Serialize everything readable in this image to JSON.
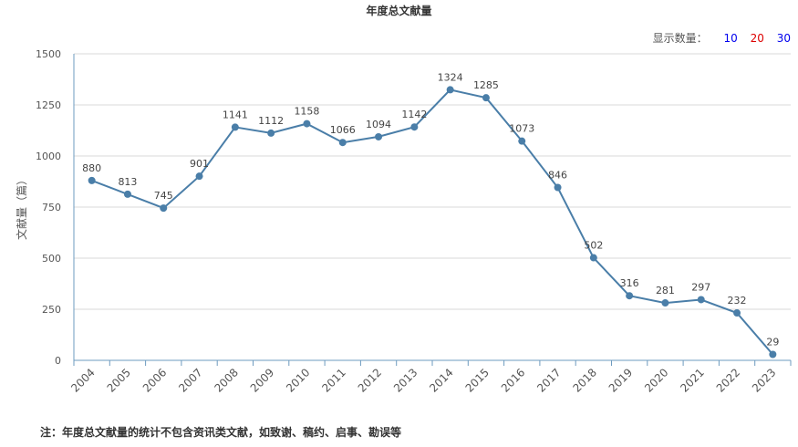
{
  "title": "年度总文献量",
  "count_selector": {
    "label": "显示数量：",
    "options": [
      {
        "value": "10",
        "color": "#0000ee"
      },
      {
        "value": "20",
        "color": "#dd0000"
      },
      {
        "value": "30",
        "color": "#0000ee"
      }
    ]
  },
  "footnote": "注：年度总文献量的统计不包含资讯类文献，如致谢、稿约、启事、勘误等",
  "chart_data": {
    "type": "line",
    "title": "年度总文献量",
    "xlabel": "",
    "ylabel": "文献量（篇）",
    "ylim": [
      0,
      1500
    ],
    "yticks": [
      0,
      250,
      500,
      750,
      1000,
      1250,
      1500
    ],
    "grid": true,
    "line_color": "#4a7ea8",
    "categories": [
      "2004",
      "2005",
      "2006",
      "2007",
      "2008",
      "2009",
      "2010",
      "2011",
      "2012",
      "2013",
      "2014",
      "2015",
      "2016",
      "2017",
      "2018",
      "2019",
      "2020",
      "2021",
      "2022",
      "2023"
    ],
    "values": [
      880,
      813,
      745,
      901,
      1141,
      1112,
      1158,
      1066,
      1094,
      1142,
      1324,
      1285,
      1073,
      846,
      502,
      316,
      281,
      297,
      232,
      29
    ]
  }
}
